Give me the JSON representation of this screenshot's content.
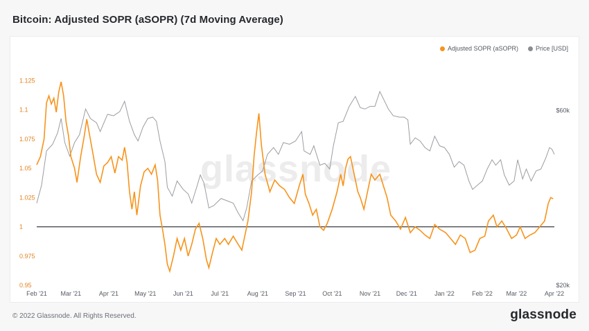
{
  "header": {
    "title": "Bitcoin: Adjusted SOPR (aSOPR) (7d Moving Average)"
  },
  "footer": {
    "copyright": "© 2022 Glassnode. All Rights Reserved.",
    "brand": "glassnode"
  },
  "watermark": "glassnode",
  "colors": {
    "asopr": "#f7931a",
    "price": "#9a9ca1",
    "baseline": "#2a2c30"
  },
  "chart_data": {
    "type": "line",
    "title": "Bitcoin: Adjusted SOPR (aSOPR) (7d Moving Average)",
    "legend": [
      "Adjusted SOPR (aSOPR)",
      "Price [USD]"
    ],
    "legend_position": "top-right",
    "x_ticks": [
      "Feb '21",
      "Mar '21",
      "Apr '21",
      "May '21",
      "Jun '21",
      "Jul '21",
      "Aug '21",
      "Sep '21",
      "Oct '21",
      "Nov '21",
      "Dec '21",
      "Jan '22",
      "Feb '22",
      "Mar '22",
      "Apr '22"
    ],
    "x_range": [
      "2021-02-01",
      "2022-04-01"
    ],
    "y_left": {
      "ticks": [
        "0.95",
        "0.975",
        "1",
        "1.025",
        "1.05",
        "1.075",
        "1.1",
        "1.125"
      ],
      "range": [
        0.95,
        1.13
      ]
    },
    "y_right": {
      "ticks": [
        "$20k",
        "$60k"
      ],
      "scale": "log",
      "range": [
        20000,
        75000
      ]
    },
    "reference_line": 1.0,
    "series": [
      {
        "name": "Adjusted SOPR (aSOPR)",
        "axis": "left",
        "points": [
          [
            "2021-02-01",
            1.053
          ],
          [
            "2021-02-04",
            1.06
          ],
          [
            "2021-02-07",
            1.075
          ],
          [
            "2021-02-09",
            1.106
          ],
          [
            "2021-02-11",
            1.112
          ],
          [
            "2021-02-13",
            1.105
          ],
          [
            "2021-02-15",
            1.11
          ],
          [
            "2021-02-17",
            1.098
          ],
          [
            "2021-02-19",
            1.115
          ],
          [
            "2021-02-21",
            1.124
          ],
          [
            "2021-02-23",
            1.112
          ],
          [
            "2021-02-25",
            1.09
          ],
          [
            "2021-02-27",
            1.078
          ],
          [
            "2021-03-01",
            1.06
          ],
          [
            "2021-03-04",
            1.05
          ],
          [
            "2021-03-06",
            1.038
          ],
          [
            "2021-03-09",
            1.06
          ],
          [
            "2021-03-12",
            1.078
          ],
          [
            "2021-03-14",
            1.092
          ],
          [
            "2021-03-16",
            1.08
          ],
          [
            "2021-03-19",
            1.063
          ],
          [
            "2021-03-22",
            1.045
          ],
          [
            "2021-03-25",
            1.038
          ],
          [
            "2021-03-28",
            1.052
          ],
          [
            "2021-03-31",
            1.055
          ],
          [
            "2021-04-03",
            1.06
          ],
          [
            "2021-04-06",
            1.046
          ],
          [
            "2021-04-09",
            1.06
          ],
          [
            "2021-04-12",
            1.057
          ],
          [
            "2021-04-14",
            1.068
          ],
          [
            "2021-04-16",
            1.055
          ],
          [
            "2021-04-18",
            1.03
          ],
          [
            "2021-04-20",
            1.015
          ],
          [
            "2021-04-22",
            1.03
          ],
          [
            "2021-04-24",
            1.01
          ],
          [
            "2021-04-27",
            1.035
          ],
          [
            "2021-04-30",
            1.047
          ],
          [
            "2021-05-03",
            1.05
          ],
          [
            "2021-05-06",
            1.045
          ],
          [
            "2021-05-09",
            1.053
          ],
          [
            "2021-05-11",
            1.04
          ],
          [
            "2021-05-13",
            1.01
          ],
          [
            "2021-05-15",
            0.998
          ],
          [
            "2021-05-17",
            0.985
          ],
          [
            "2021-05-19",
            0.968
          ],
          [
            "2021-05-21",
            0.962
          ],
          [
            "2021-05-24",
            0.975
          ],
          [
            "2021-05-27",
            0.99
          ],
          [
            "2021-05-30",
            0.98
          ],
          [
            "2021-06-02",
            0.99
          ],
          [
            "2021-06-05",
            0.975
          ],
          [
            "2021-06-08",
            0.985
          ],
          [
            "2021-06-11",
            0.998
          ],
          [
            "2021-06-14",
            1.003
          ],
          [
            "2021-06-17",
            0.99
          ],
          [
            "2021-06-20",
            0.972
          ],
          [
            "2021-06-22",
            0.965
          ],
          [
            "2021-06-25",
            0.978
          ],
          [
            "2021-06-28",
            0.99
          ],
          [
            "2021-07-01",
            0.985
          ],
          [
            "2021-07-05",
            0.99
          ],
          [
            "2021-07-08",
            0.985
          ],
          [
            "2021-07-12",
            0.992
          ],
          [
            "2021-07-16",
            0.985
          ],
          [
            "2021-07-19",
            0.98
          ],
          [
            "2021-07-21",
            0.99
          ],
          [
            "2021-07-24",
            1.005
          ],
          [
            "2021-07-27",
            1.03
          ],
          [
            "2021-07-29",
            1.06
          ],
          [
            "2021-07-31",
            1.08
          ],
          [
            "2021-08-02",
            1.097
          ],
          [
            "2021-08-04",
            1.07
          ],
          [
            "2021-08-07",
            1.045
          ],
          [
            "2021-08-11",
            1.03
          ],
          [
            "2021-08-15",
            1.04
          ],
          [
            "2021-08-19",
            1.035
          ],
          [
            "2021-08-23",
            1.032
          ],
          [
            "2021-08-27",
            1.025
          ],
          [
            "2021-08-31",
            1.02
          ],
          [
            "2021-09-04",
            1.035
          ],
          [
            "2021-09-07",
            1.045
          ],
          [
            "2021-09-09",
            1.028
          ],
          [
            "2021-09-12",
            1.02
          ],
          [
            "2021-09-15",
            1.01
          ],
          [
            "2021-09-18",
            1.015
          ],
          [
            "2021-09-21",
            1.0
          ],
          [
            "2021-09-24",
            0.997
          ],
          [
            "2021-09-27",
            1.003
          ],
          [
            "2021-10-01",
            1.015
          ],
          [
            "2021-10-05",
            1.03
          ],
          [
            "2021-10-08",
            1.045
          ],
          [
            "2021-10-10",
            1.035
          ],
          [
            "2021-10-12",
            1.05
          ],
          [
            "2021-10-14",
            1.058
          ],
          [
            "2021-10-16",
            1.06
          ],
          [
            "2021-10-19",
            1.045
          ],
          [
            "2021-10-22",
            1.03
          ],
          [
            "2021-10-24",
            1.025
          ],
          [
            "2021-10-27",
            1.015
          ],
          [
            "2021-10-30",
            1.03
          ],
          [
            "2021-11-02",
            1.045
          ],
          [
            "2021-11-05",
            1.04
          ],
          [
            "2021-11-09",
            1.045
          ],
          [
            "2021-11-12",
            1.035
          ],
          [
            "2021-11-15",
            1.025
          ],
          [
            "2021-11-18",
            1.01
          ],
          [
            "2021-11-22",
            1.005
          ],
          [
            "2021-11-26",
            0.998
          ],
          [
            "2021-11-30",
            1.008
          ],
          [
            "2021-12-04",
            0.995
          ],
          [
            "2021-12-08",
            1.0
          ],
          [
            "2021-12-12",
            0.997
          ],
          [
            "2021-12-16",
            0.993
          ],
          [
            "2021-12-20",
            0.99
          ],
          [
            "2021-12-24",
            1.002
          ],
          [
            "2021-12-28",
            0.998
          ],
          [
            "2022-01-02",
            0.995
          ],
          [
            "2022-01-06",
            0.99
          ],
          [
            "2022-01-10",
            0.985
          ],
          [
            "2022-01-14",
            0.993
          ],
          [
            "2022-01-18",
            0.99
          ],
          [
            "2022-01-22",
            0.978
          ],
          [
            "2022-01-26",
            0.98
          ],
          [
            "2022-01-30",
            0.99
          ],
          [
            "2022-02-03",
            0.992
          ],
          [
            "2022-02-06",
            1.005
          ],
          [
            "2022-02-10",
            1.01
          ],
          [
            "2022-02-13",
            1.0
          ],
          [
            "2022-02-17",
            1.005
          ],
          [
            "2022-02-21",
            0.998
          ],
          [
            "2022-02-25",
            0.99
          ],
          [
            "2022-03-01",
            0.993
          ],
          [
            "2022-03-04",
            1.0
          ],
          [
            "2022-03-08",
            0.99
          ],
          [
            "2022-03-12",
            0.993
          ],
          [
            "2022-03-16",
            0.995
          ],
          [
            "2022-03-20",
            1.0
          ],
          [
            "2022-03-24",
            1.005
          ],
          [
            "2022-03-27",
            1.02
          ],
          [
            "2022-03-29",
            1.025
          ],
          [
            "2022-03-31",
            1.024
          ]
        ]
      },
      {
        "name": "Price [USD]",
        "axis": "right",
        "points": [
          [
            "2021-02-01",
            33500
          ],
          [
            "2021-02-05",
            37500
          ],
          [
            "2021-02-09",
            46500
          ],
          [
            "2021-02-14",
            48500
          ],
          [
            "2021-02-18",
            52000
          ],
          [
            "2021-02-21",
            57000
          ],
          [
            "2021-02-24",
            49000
          ],
          [
            "2021-02-28",
            45000
          ],
          [
            "2021-03-04",
            49000
          ],
          [
            "2021-03-08",
            51500
          ],
          [
            "2021-03-13",
            60500
          ],
          [
            "2021-03-17",
            57000
          ],
          [
            "2021-03-22",
            55500
          ],
          [
            "2021-03-25",
            52500
          ],
          [
            "2021-03-31",
            58500
          ],
          [
            "2021-04-05",
            58000
          ],
          [
            "2021-04-10",
            59500
          ],
          [
            "2021-04-14",
            63500
          ],
          [
            "2021-04-18",
            56000
          ],
          [
            "2021-04-22",
            51500
          ],
          [
            "2021-04-25",
            49500
          ],
          [
            "2021-04-29",
            54000
          ],
          [
            "2021-05-03",
            57000
          ],
          [
            "2021-05-07",
            57500
          ],
          [
            "2021-05-10",
            56000
          ],
          [
            "2021-05-13",
            49500
          ],
          [
            "2021-05-17",
            43500
          ],
          [
            "2021-05-19",
            37000
          ],
          [
            "2021-05-23",
            35000
          ],
          [
            "2021-05-27",
            38500
          ],
          [
            "2021-06-01",
            36500
          ],
          [
            "2021-06-05",
            35500
          ],
          [
            "2021-06-08",
            33500
          ],
          [
            "2021-06-12",
            37000
          ],
          [
            "2021-06-15",
            40000
          ],
          [
            "2021-06-18",
            38000
          ],
          [
            "2021-06-22",
            32500
          ],
          [
            "2021-06-26",
            33000
          ],
          [
            "2021-07-02",
            34500
          ],
          [
            "2021-07-07",
            34000
          ],
          [
            "2021-07-12",
            33500
          ],
          [
            "2021-07-16",
            31500
          ],
          [
            "2021-07-20",
            30000
          ],
          [
            "2021-07-23",
            32500
          ],
          [
            "2021-07-27",
            38500
          ],
          [
            "2021-08-01",
            40000
          ],
          [
            "2021-08-05",
            41000
          ],
          [
            "2021-08-09",
            45500
          ],
          [
            "2021-08-14",
            47500
          ],
          [
            "2021-08-18",
            45500
          ],
          [
            "2021-08-22",
            49000
          ],
          [
            "2021-08-27",
            48500
          ],
          [
            "2021-09-01",
            49500
          ],
          [
            "2021-09-06",
            52500
          ],
          [
            "2021-09-08",
            46500
          ],
          [
            "2021-09-13",
            45500
          ],
          [
            "2021-09-16",
            48000
          ],
          [
            "2021-09-21",
            42500
          ],
          [
            "2021-09-25",
            43000
          ],
          [
            "2021-09-29",
            41500
          ],
          [
            "2021-10-02",
            48000
          ],
          [
            "2021-10-06",
            55500
          ],
          [
            "2021-10-10",
            56000
          ],
          [
            "2021-10-15",
            61500
          ],
          [
            "2021-10-20",
            65500
          ],
          [
            "2021-10-24",
            61000
          ],
          [
            "2021-10-28",
            60500
          ],
          [
            "2021-11-01",
            61500
          ],
          [
            "2021-11-05",
            61500
          ],
          [
            "2021-11-09",
            67500
          ],
          [
            "2021-11-12",
            64500
          ],
          [
            "2021-11-16",
            60500
          ],
          [
            "2021-11-20",
            58000
          ],
          [
            "2021-11-25",
            57500
          ],
          [
            "2021-11-29",
            57500
          ],
          [
            "2021-12-02",
            56500
          ],
          [
            "2021-12-04",
            48500
          ],
          [
            "2021-12-08",
            50500
          ],
          [
            "2021-12-12",
            49500
          ],
          [
            "2021-12-16",
            47500
          ],
          [
            "2021-12-20",
            46500
          ],
          [
            "2021-12-24",
            51000
          ],
          [
            "2021-12-28",
            48000
          ],
          [
            "2022-01-01",
            47500
          ],
          [
            "2022-01-05",
            45500
          ],
          [
            "2022-01-09",
            42000
          ],
          [
            "2022-01-13",
            43500
          ],
          [
            "2022-01-17",
            42500
          ],
          [
            "2022-01-21",
            38500
          ],
          [
            "2022-01-24",
            36500
          ],
          [
            "2022-01-28",
            37500
          ],
          [
            "2022-02-01",
            38500
          ],
          [
            "2022-02-05",
            41500
          ],
          [
            "2022-02-09",
            44000
          ],
          [
            "2022-02-12",
            42500
          ],
          [
            "2022-02-16",
            44000
          ],
          [
            "2022-02-19",
            40000
          ],
          [
            "2022-02-23",
            37500
          ],
          [
            "2022-02-27",
            38500
          ],
          [
            "2022-03-02",
            44000
          ],
          [
            "2022-03-06",
            39000
          ],
          [
            "2022-03-09",
            41500
          ],
          [
            "2022-03-13",
            38500
          ],
          [
            "2022-03-17",
            41000
          ],
          [
            "2022-03-21",
            41500
          ],
          [
            "2022-03-25",
            44500
          ],
          [
            "2022-03-28",
            47500
          ],
          [
            "2022-03-30",
            47000
          ],
          [
            "2022-04-01",
            45500
          ]
        ]
      }
    ]
  }
}
